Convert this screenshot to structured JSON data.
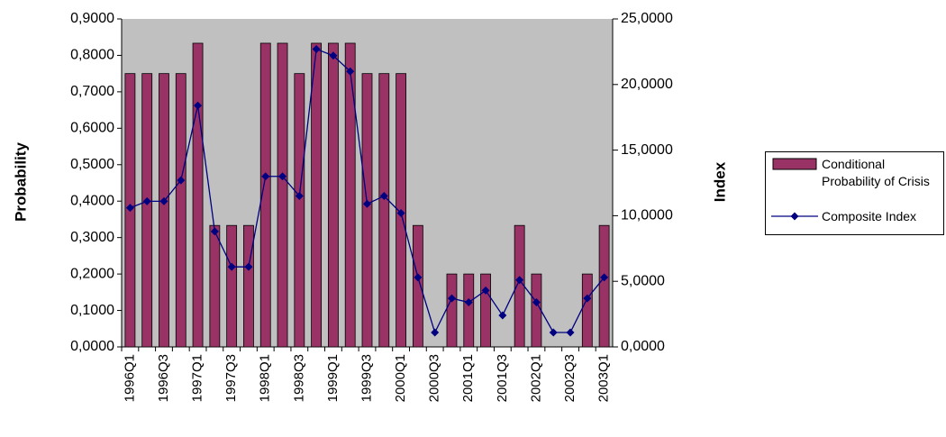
{
  "chart_data": {
    "type": "bar-line",
    "y_label": "Probability",
    "y2_label": "Index",
    "categories": [
      "1996Q1",
      null,
      "1996Q3",
      null,
      "1997Q1",
      null,
      "1997Q3",
      null,
      "1998Q1",
      null,
      "1998Q3",
      null,
      "1999Q1",
      null,
      "1999Q3",
      null,
      "2000Q1",
      null,
      "2000Q3",
      null,
      "2001Q1",
      null,
      "2001Q3",
      null,
      "2002Q1",
      null,
      "2002Q3",
      null,
      "2003Q1"
    ],
    "series": [
      {
        "name": "Conditional Probability of Crisis",
        "type": "bar",
        "color": "#993366",
        "values": [
          0.75,
          0.75,
          0.75,
          0.75,
          0.8333,
          0.3333,
          0.3333,
          0.3333,
          0.8333,
          0.8333,
          0.75,
          0.8333,
          0.8333,
          0.8333,
          0.75,
          0.75,
          0.75,
          0.3333,
          0,
          0.2,
          0.2,
          0.2,
          0,
          0.3333,
          0.2,
          0,
          0,
          0.2,
          0.3333
        ]
      },
      {
        "name": "Composite Index",
        "type": "line",
        "axis": "y2",
        "color": "#000080",
        "values": [
          10.6,
          11.1,
          11.1,
          12.7,
          18.4,
          8.8,
          6.1,
          6.1,
          13.0,
          13.0,
          11.5,
          22.7,
          22.2,
          21.0,
          10.9,
          11.5,
          10.2,
          5.3,
          1.1,
          3.7,
          3.4,
          4.3,
          2.4,
          5.1,
          3.4,
          1.1,
          1.1,
          3.7,
          5.3
        ]
      }
    ],
    "ylim": [
      0,
      0.9
    ],
    "yticks": [
      {
        "value": 0,
        "label": "0,0000"
      },
      {
        "value": 0.1,
        "label": "0,1000"
      },
      {
        "value": 0.2,
        "label": "0,2000"
      },
      {
        "value": 0.3,
        "label": "0,3000"
      },
      {
        "value": 0.4,
        "label": "0,4000"
      },
      {
        "value": 0.5,
        "label": "0,5000"
      },
      {
        "value": 0.6,
        "label": "0,6000"
      },
      {
        "value": 0.7,
        "label": "0,7000"
      },
      {
        "value": 0.8,
        "label": "0,8000"
      },
      {
        "value": 0.9,
        "label": "0,9000"
      }
    ],
    "y2lim": [
      0,
      25
    ],
    "y2ticks": [
      {
        "value": 0,
        "label": "0,0000"
      },
      {
        "value": 5,
        "label": "5,0000"
      },
      {
        "value": 10,
        "label": "10,0000"
      },
      {
        "value": 15,
        "label": "15,0000"
      },
      {
        "value": 20,
        "label": "20,0000"
      },
      {
        "value": 25,
        "label": "25,0000"
      }
    ],
    "plot_background": "#c0c0c0",
    "legend": "right"
  }
}
